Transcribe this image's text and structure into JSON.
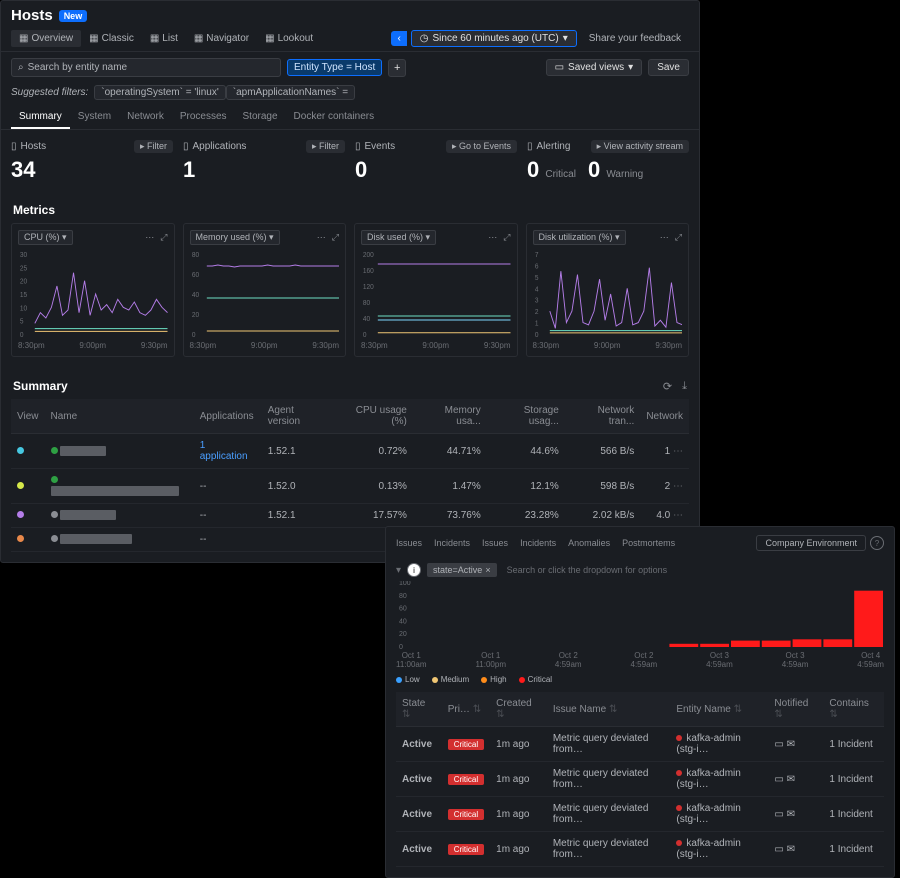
{
  "top": {
    "title": "Hosts",
    "badge": "New",
    "viewmodes": [
      {
        "label": "Overview",
        "icon": "grid-icon",
        "active": true
      },
      {
        "label": "Classic",
        "icon": "list-icon"
      },
      {
        "label": "List",
        "icon": "lines-icon"
      },
      {
        "label": "Navigator",
        "icon": "compass-icon"
      },
      {
        "label": "Lookout",
        "icon": "radar-icon"
      }
    ],
    "timerange": "Since 60 minutes ago (UTC)",
    "feedback": "Share your feedback",
    "search_placeholder": "Search by entity name",
    "entity_chip": "Entity Type  =  Host",
    "saved_views": "Saved views",
    "save_btn": "Save",
    "filters_label": "Suggested filters:",
    "filters": [
      "`operatingSystem` = 'linux'",
      "`apmApplicationNames` = "
    ],
    "tabs": [
      "Summary",
      "System",
      "Network",
      "Processes",
      "Storage",
      "Docker containers"
    ],
    "active_tab": 0,
    "kpis": [
      {
        "label": "Hosts",
        "value": "34",
        "btn": "Filter",
        "icon": "hosts-icon"
      },
      {
        "label": "Applications",
        "value": "1",
        "btn": "Filter",
        "icon": "apps-icon"
      },
      {
        "label": "Events",
        "value": "0",
        "btn": "Go to Events",
        "icon": "events-icon"
      },
      {
        "label": "Alerting",
        "icon": "bell-icon",
        "btn": "View activity stream",
        "multi": [
          {
            "v": "0",
            "sub": "Critical"
          },
          {
            "v": "0",
            "sub": "Warning"
          }
        ]
      }
    ],
    "metrics_label": "Metrics",
    "charts": [
      {
        "title": "CPU (%)",
        "ymax": 30,
        "ytick": 5,
        "lines": [
          {
            "color": "#b47de8",
            "pts": [
              4,
              8,
              6,
              10,
              18,
              7,
              9,
              23,
              8,
              20,
              7,
              15,
              9,
              11,
              8,
              13,
              10,
              9,
              12,
              8,
              7,
              9,
              13,
              10,
              8
            ]
          },
          {
            "color": "#6de0c4",
            "pts": [
              2,
              2,
              2,
              2,
              2,
              2,
              2,
              2,
              2,
              2,
              2,
              2,
              2,
              2,
              2,
              2,
              2,
              2,
              2,
              2,
              2,
              2,
              2,
              2,
              2
            ]
          },
          {
            "color": "#f0c674",
            "pts": [
              1,
              1,
              1,
              1,
              1,
              1,
              1,
              1,
              1,
              1,
              1,
              1,
              1,
              1,
              1,
              1,
              1,
              1,
              1,
              1,
              1,
              1,
              1,
              1,
              1
            ]
          }
        ]
      },
      {
        "title": "Memory used (%)",
        "ymax": 80,
        "ytick": 20,
        "lines": [
          {
            "color": "#b47de8",
            "pts": [
              68,
              68,
              69,
              68,
              68,
              67,
              68,
              68,
              68,
              68,
              68,
              69,
              68,
              68,
              68,
              68,
              69,
              68,
              68,
              68,
              68,
              68,
              68,
              68,
              68
            ]
          },
          {
            "color": "#6de0c4",
            "pts": [
              36,
              36,
              36,
              36,
              36,
              36,
              36,
              36,
              36,
              36,
              36,
              36,
              36,
              36,
              36,
              36,
              36,
              36,
              36,
              36,
              36,
              36,
              36,
              36,
              36
            ]
          },
          {
            "color": "#f0c674",
            "pts": [
              3,
              3,
              3,
              3,
              3,
              3,
              3,
              3,
              3,
              3,
              3,
              3,
              3,
              3,
              3,
              3,
              3,
              3,
              3,
              3,
              3,
              3,
              3,
              3,
              3
            ]
          }
        ]
      },
      {
        "title": "Disk used (%)",
        "ymax": 200,
        "ytick": 40,
        "lines": [
          {
            "color": "#b47de8",
            "pts": [
              175,
              175,
              175,
              175,
              175,
              175,
              175,
              175,
              175,
              175,
              175,
              175,
              175,
              175,
              175,
              175,
              175,
              175,
              175,
              175,
              175,
              175,
              175,
              175,
              175
            ]
          },
          {
            "color": "#6de0c4",
            "pts": [
              45,
              45,
              45,
              45,
              45,
              45,
              45,
              45,
              45,
              45,
              45,
              45,
              45,
              45,
              45,
              45,
              45,
              45,
              45,
              45,
              45,
              45,
              45,
              45,
              45
            ]
          },
          {
            "color": "#7fd6ff",
            "pts": [
              35,
              35,
              35,
              35,
              35,
              35,
              35,
              35,
              35,
              35,
              35,
              35,
              35,
              35,
              35,
              35,
              35,
              35,
              35,
              35,
              35,
              35,
              35,
              35,
              35
            ]
          },
          {
            "color": "#f0c674",
            "pts": [
              3,
              3,
              3,
              3,
              3,
              3,
              3,
              3,
              3,
              3,
              3,
              3,
              3,
              3,
              3,
              3,
              3,
              3,
              3,
              3,
              3,
              3,
              3,
              3,
              3
            ]
          }
        ]
      },
      {
        "title": "Disk utilization (%)",
        "ymax": 7,
        "ytick": 1,
        "lines": [
          {
            "color": "#b47de8",
            "pts": [
              2,
              0.5,
              5.5,
              1,
              2,
              5.2,
              1,
              0.8,
              2,
              4.8,
              1.2,
              3.5,
              0.7,
              1,
              4,
              0.8,
              1,
              2,
              5.8,
              0.7,
              1.2,
              0.6,
              4.5,
              1,
              0.8
            ]
          },
          {
            "color": "#6de0c4",
            "pts": [
              0.3,
              0.3,
              0.3,
              0.3,
              0.3,
              0.3,
              0.3,
              0.3,
              0.3,
              0.3,
              0.3,
              0.3,
              0.3,
              0.3,
              0.3,
              0.3,
              0.3,
              0.3,
              0.3,
              0.3,
              0.3,
              0.3,
              0.3,
              0.3,
              0.3
            ]
          },
          {
            "color": "#f0c674",
            "pts": [
              0.1,
              0.1,
              0.1,
              0.1,
              0.1,
              0.1,
              0.1,
              0.1,
              0.1,
              0.1,
              0.1,
              0.1,
              0.1,
              0.1,
              0.1,
              0.1,
              0.1,
              0.1,
              0.1,
              0.1,
              0.1,
              0.1,
              0.1,
              0.1,
              0.1
            ]
          }
        ]
      }
    ],
    "chart_xlabels": [
      "8:30pm",
      "9:00pm",
      "9:30pm"
    ],
    "summary_label": "Summary",
    "cols": [
      "View",
      "Name",
      "Applications",
      "Agent version",
      "CPU usage (%)",
      "Memory usa...",
      "Storage usag...",
      "Network tran...",
      "Network"
    ],
    "rows": [
      {
        "dot": "#2ea043",
        "viewdot": "#46c7e0",
        "name_w": 46,
        "apps": "1 application",
        "apps_link": true,
        "ver": "1.52.1",
        "cpu": "0.72%",
        "mem": "44.71%",
        "sto": "44.6%",
        "nt": "566 B/s",
        "nw": "1"
      },
      {
        "dot": "#2ea043",
        "viewdot": "#d5e84a",
        "name_w": 128,
        "apps": "--",
        "ver": "1.52.0",
        "cpu": "0.13%",
        "mem": "1.47%",
        "sto": "12.1%",
        "nt": "598 B/s",
        "nw": "2"
      },
      {
        "dot": "#8a8d93",
        "viewdot": "#b47de8",
        "name_w": 56,
        "apps": "--",
        "ver": "1.52.1",
        "cpu": "17.57%",
        "mem": "73.76%",
        "sto": "23.28%",
        "nt": "2.02 kB/s",
        "nw": "4.0"
      },
      {
        "dot": "#8a8d93",
        "viewdot": "#e8884a",
        "name_w": 72,
        "apps": "--",
        "ver": "",
        "cpu": "–",
        "mem": "–",
        "sto": "–",
        "nt": "–",
        "nw": "–"
      }
    ]
  },
  "bot": {
    "tabs": [
      "Issues",
      "Incidents",
      "Issues",
      "Incidents",
      "Anomalies",
      "Postmortems"
    ],
    "env_btn": "Company Environment",
    "state_chip": "state=Active",
    "search_placeholder": "Search or click the dropdown for options",
    "chart": {
      "ymax": 100,
      "ytick": 20,
      "bar_color": "#ff1a1a",
      "bars": [
        0,
        0,
        0,
        0,
        0,
        0,
        0,
        0,
        5,
        5,
        10,
        10,
        12,
        12,
        88
      ]
    },
    "xlabels": [
      {
        "a": "Oct 1",
        "b": "11:00am"
      },
      {
        "a": "Oct 1",
        "b": "11:00pm"
      },
      {
        "a": "Oct 2",
        "b": "4:59am"
      },
      {
        "a": "Oct 2",
        "b": "4:59am"
      },
      {
        "a": "Oct 3",
        "b": "4:59am"
      },
      {
        "a": "Oct 3",
        "b": "4:59am"
      },
      {
        "a": "Oct 4",
        "b": "4:59am"
      }
    ],
    "legend": [
      {
        "label": "Low",
        "c": "#3aa0ff"
      },
      {
        "label": "Medium",
        "c": "#f0c674"
      },
      {
        "label": "High",
        "c": "#ff8c1a"
      },
      {
        "label": "Critical",
        "c": "#ff1a1a"
      }
    ],
    "cols": [
      "State",
      "Pri…",
      "Created",
      "Issue Name",
      "Entity Name",
      "Notified",
      "Contains"
    ],
    "rows": [
      {
        "state": "Active",
        "pri": "Critical",
        "created": "1m ago",
        "issue": "Metric query deviated from…",
        "entity": "kafka-admin (stg-i…",
        "contains": "1 Incident"
      },
      {
        "state": "Active",
        "pri": "Critical",
        "created": "1m ago",
        "issue": "Metric query deviated from…",
        "entity": "kafka-admin (stg-i…",
        "contains": "1 Incident"
      },
      {
        "state": "Active",
        "pri": "Critical",
        "created": "1m ago",
        "issue": "Metric query deviated from…",
        "entity": "kafka-admin (stg-i…",
        "contains": "1 Incident"
      },
      {
        "state": "Active",
        "pri": "Critical",
        "created": "1m ago",
        "issue": "Metric query deviated from…",
        "entity": "kafka-admin (stg-i…",
        "contains": "1 Incident"
      }
    ]
  }
}
